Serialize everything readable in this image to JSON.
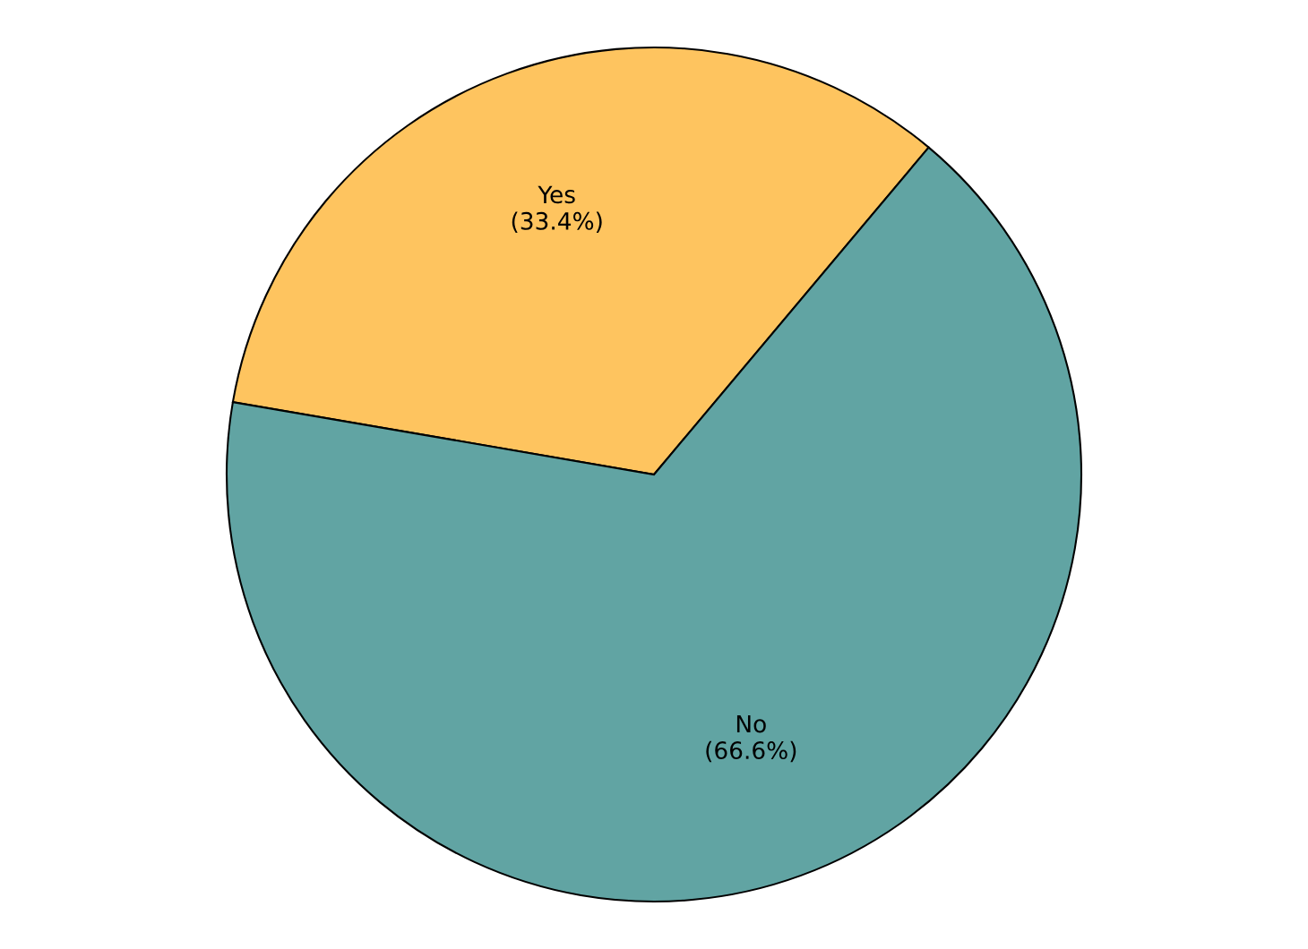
{
  "chart_data": {
    "type": "pie",
    "categories": [
      "Yes",
      "No"
    ],
    "values": [
      33.4,
      66.6
    ],
    "value_labels": [
      "(33.4%)",
      "(66.6%)"
    ],
    "colors": [
      "#fec45f",
      "#61a4a3"
    ],
    "legend": false
  }
}
